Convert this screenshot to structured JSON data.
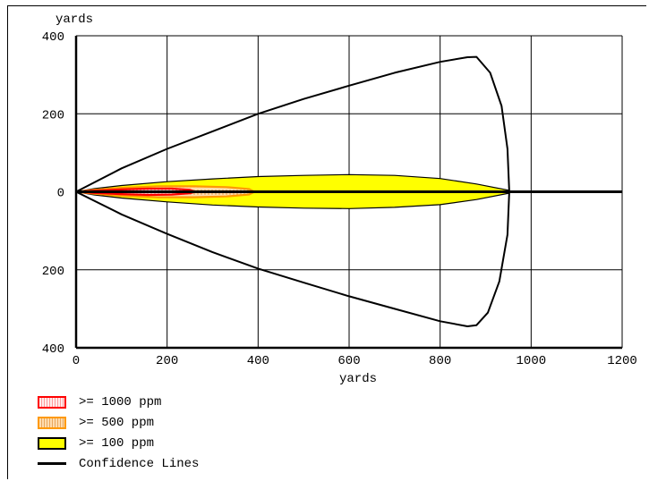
{
  "chart_data": {
    "type": "area",
    "xlabel": "yards",
    "ylabel": "yards",
    "xlim": [
      0,
      1200
    ],
    "ylim": [
      -400,
      400
    ],
    "x_ticks": [
      "0",
      "200",
      "400",
      "600",
      "800",
      "1000",
      "1200"
    ],
    "y_ticks": [
      "400",
      "200",
      "0",
      "200",
      "400"
    ],
    "y_tick_values": [
      400,
      200,
      0,
      -200,
      -400
    ],
    "grid": true,
    "legend_position": "bottom-left",
    "series": [
      {
        "name": ">= 100 ppm",
        "kind": "filled-region",
        "fill": "#ffff00",
        "stroke": "#000000",
        "points": [
          [
            0,
            0
          ],
          [
            40,
            8
          ],
          [
            100,
            16
          ],
          [
            200,
            26
          ],
          [
            300,
            33
          ],
          [
            400,
            39
          ],
          [
            500,
            42
          ],
          [
            600,
            44
          ],
          [
            700,
            42
          ],
          [
            800,
            34
          ],
          [
            880,
            20
          ],
          [
            950,
            4
          ],
          [
            950,
            0
          ],
          [
            950,
            -4
          ],
          [
            880,
            -20
          ],
          [
            800,
            -33
          ],
          [
            700,
            -40
          ],
          [
            600,
            -43
          ],
          [
            500,
            -42
          ],
          [
            400,
            -39
          ],
          [
            300,
            -34
          ],
          [
            200,
            -26
          ],
          [
            100,
            -16
          ],
          [
            40,
            -8
          ],
          [
            0,
            0
          ]
        ]
      },
      {
        "name": ">= 500 ppm",
        "kind": "filled-region",
        "fill": "#ffd6a0",
        "stroke": "#ff9900",
        "points": [
          [
            0,
            0
          ],
          [
            40,
            5
          ],
          [
            100,
            10
          ],
          [
            180,
            14
          ],
          [
            260,
            14
          ],
          [
            330,
            12
          ],
          [
            380,
            7
          ],
          [
            392,
            0
          ],
          [
            380,
            -7
          ],
          [
            330,
            -12
          ],
          [
            260,
            -14
          ],
          [
            180,
            -14
          ],
          [
            100,
            -10
          ],
          [
            40,
            -5
          ],
          [
            0,
            0
          ]
        ]
      },
      {
        "name": ">= 1000 ppm",
        "kind": "filled-region",
        "fill": "#ffe8e8",
        "stroke": "#ff0000",
        "points": [
          [
            0,
            0
          ],
          [
            40,
            3
          ],
          [
            100,
            6
          ],
          [
            160,
            8
          ],
          [
            210,
            8
          ],
          [
            250,
            5
          ],
          [
            262,
            0
          ],
          [
            250,
            -4
          ],
          [
            210,
            -7
          ],
          [
            160,
            -8
          ],
          [
            100,
            -6
          ],
          [
            40,
            -3
          ],
          [
            0,
            0
          ]
        ]
      },
      {
        "name": "Confidence Lines",
        "kind": "line",
        "stroke": "#000000",
        "points": [
          [
            0,
            0
          ],
          [
            100,
            60
          ],
          [
            200,
            110
          ],
          [
            300,
            155
          ],
          [
            400,
            200
          ],
          [
            500,
            238
          ],
          [
            600,
            272
          ],
          [
            700,
            305
          ],
          [
            800,
            333
          ],
          [
            860,
            345
          ],
          [
            880,
            346
          ],
          [
            910,
            305
          ],
          [
            935,
            220
          ],
          [
            948,
            110
          ],
          [
            952,
            0
          ],
          [
            948,
            -110
          ],
          [
            930,
            -230
          ],
          [
            905,
            -310
          ],
          [
            880,
            -342
          ],
          [
            860,
            -345
          ],
          [
            800,
            -332
          ],
          [
            700,
            -300
          ],
          [
            600,
            -268
          ],
          [
            500,
            -233
          ],
          [
            400,
            -197
          ],
          [
            300,
            -155
          ],
          [
            200,
            -108
          ],
          [
            100,
            -58
          ],
          [
            0,
            0
          ]
        ]
      },
      {
        "name": "centerline",
        "kind": "line",
        "stroke": "#000000",
        "points": [
          [
            0,
            0
          ],
          [
            1200,
            0
          ]
        ]
      }
    ]
  },
  "legend": {
    "items": [
      {
        "label": ">= 1000 ppm",
        "fill": "#ffe8e8",
        "border": "#ff0000",
        "pattern": "dotted"
      },
      {
        "label": ">= 500 ppm",
        "fill": "#ffd6a0",
        "border": "#ff9900",
        "pattern": "dotted"
      },
      {
        "label": ">= 100 ppm",
        "fill": "#ffff00",
        "border": "#000000",
        "pattern": "solid"
      },
      {
        "label": "Confidence Lines",
        "fill": "#000000",
        "border": "#000000",
        "pattern": "line"
      }
    ]
  }
}
